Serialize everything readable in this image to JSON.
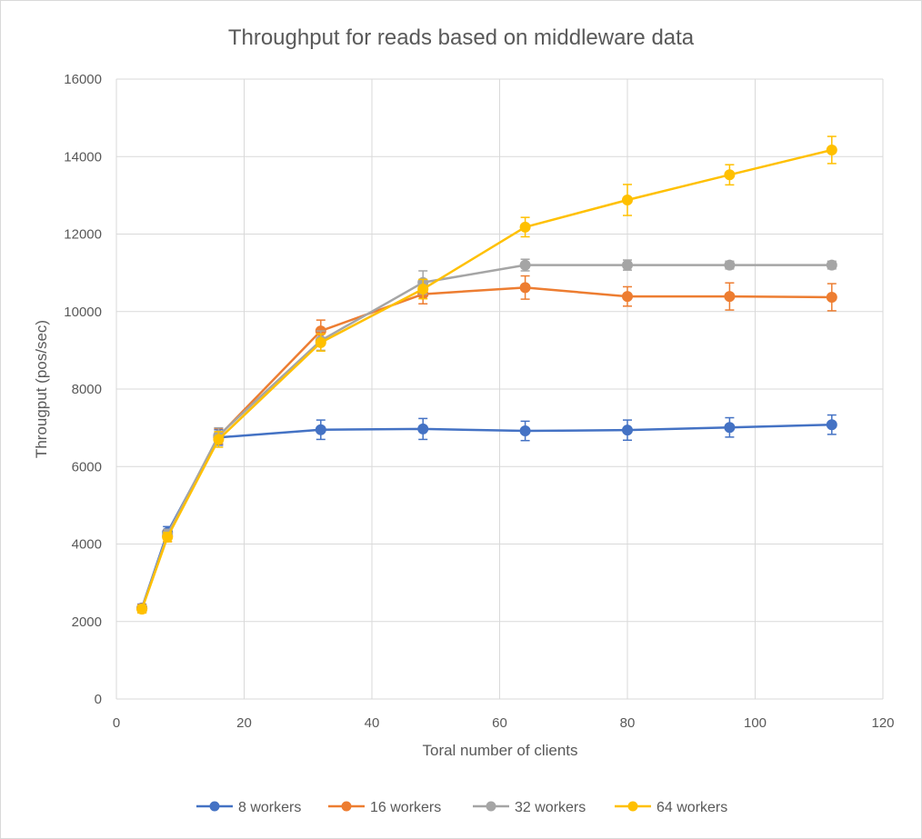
{
  "chart_data": {
    "type": "line",
    "title": "Throughput for reads based on middleware data",
    "xlabel": "Toral number of clients",
    "ylabel": "Througput (pos/sec)",
    "xlim": [
      0,
      120
    ],
    "ylim": [
      0,
      16000
    ],
    "x_ticks": [
      0,
      20,
      40,
      60,
      80,
      100,
      120
    ],
    "y_ticks": [
      0,
      2000,
      4000,
      6000,
      8000,
      10000,
      12000,
      14000,
      16000
    ],
    "grid": true,
    "legend_position": "bottom",
    "x": [
      4,
      8,
      16,
      32,
      48,
      64,
      80,
      96,
      112
    ],
    "series": [
      {
        "name": "8 workers",
        "color": "#4472c4",
        "values": [
          2350,
          4300,
          6750,
          6950,
          6970,
          6920,
          6940,
          7010,
          7080
        ],
        "errors": [
          100,
          150,
          200,
          250,
          270,
          250,
          260,
          250,
          250
        ]
      },
      {
        "name": "16 workers",
        "color": "#ed7d31",
        "values": [
          2340,
          4200,
          6780,
          9500,
          10450,
          10620,
          10390,
          10390,
          10370
        ],
        "errors": [
          100,
          140,
          200,
          280,
          250,
          300,
          250,
          350,
          350
        ]
      },
      {
        "name": "32 workers",
        "color": "#a5a5a5",
        "values": [
          2330,
          4250,
          6800,
          9250,
          10750,
          11200,
          11200,
          11200,
          11200
        ],
        "errors": [
          100,
          130,
          200,
          250,
          300,
          150,
          130,
          100,
          100
        ]
      },
      {
        "name": "64 workers",
        "color": "#ffc000",
        "values": [
          2320,
          4180,
          6700,
          9200,
          10580,
          12180,
          12880,
          13530,
          14170
        ],
        "errors": [
          100,
          120,
          200,
          220,
          250,
          250,
          400,
          260,
          350
        ]
      }
    ]
  }
}
